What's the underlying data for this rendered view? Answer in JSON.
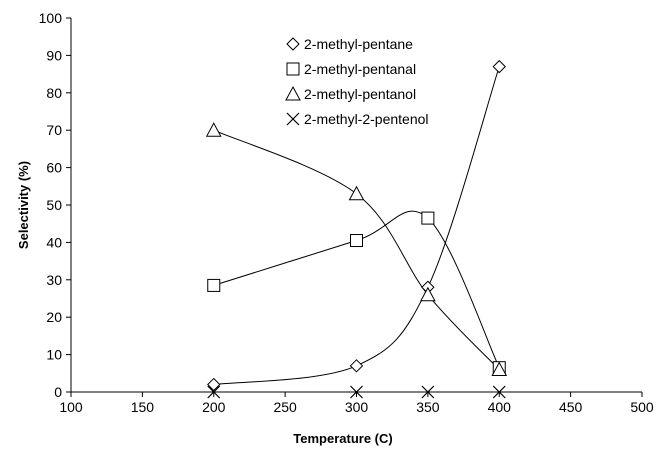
{
  "chart_data": {
    "type": "scatter",
    "title": "",
    "xlabel": "Temperature (C)",
    "ylabel": "Selectivity (%)",
    "xlim": [
      100,
      500
    ],
    "ylim": [
      0,
      100
    ],
    "xticks": [
      100,
      150,
      200,
      250,
      300,
      350,
      400,
      450,
      500
    ],
    "yticks": [
      0,
      10,
      20,
      30,
      40,
      50,
      60,
      70,
      80,
      90,
      100
    ],
    "grid": false,
    "legend_position": "top-center",
    "series": [
      {
        "name": "2-methyl-pentane",
        "marker": "diamond",
        "x": [
          200,
          300,
          350,
          400
        ],
        "y": [
          2,
          7,
          28,
          87
        ]
      },
      {
        "name": "2-methyl-pentanal",
        "marker": "square",
        "x": [
          200,
          300,
          350,
          400
        ],
        "y": [
          28.5,
          40.5,
          46.5,
          6.5
        ]
      },
      {
        "name": "2-methyl-pentanol",
        "marker": "triangle",
        "x": [
          200,
          300,
          350,
          400
        ],
        "y": [
          70,
          53,
          26,
          6
        ]
      },
      {
        "name": "2-methyl-2-pentenol",
        "marker": "cross",
        "x": [
          200,
          300,
          350,
          400
        ],
        "y": [
          0,
          0,
          0,
          0
        ]
      }
    ]
  }
}
